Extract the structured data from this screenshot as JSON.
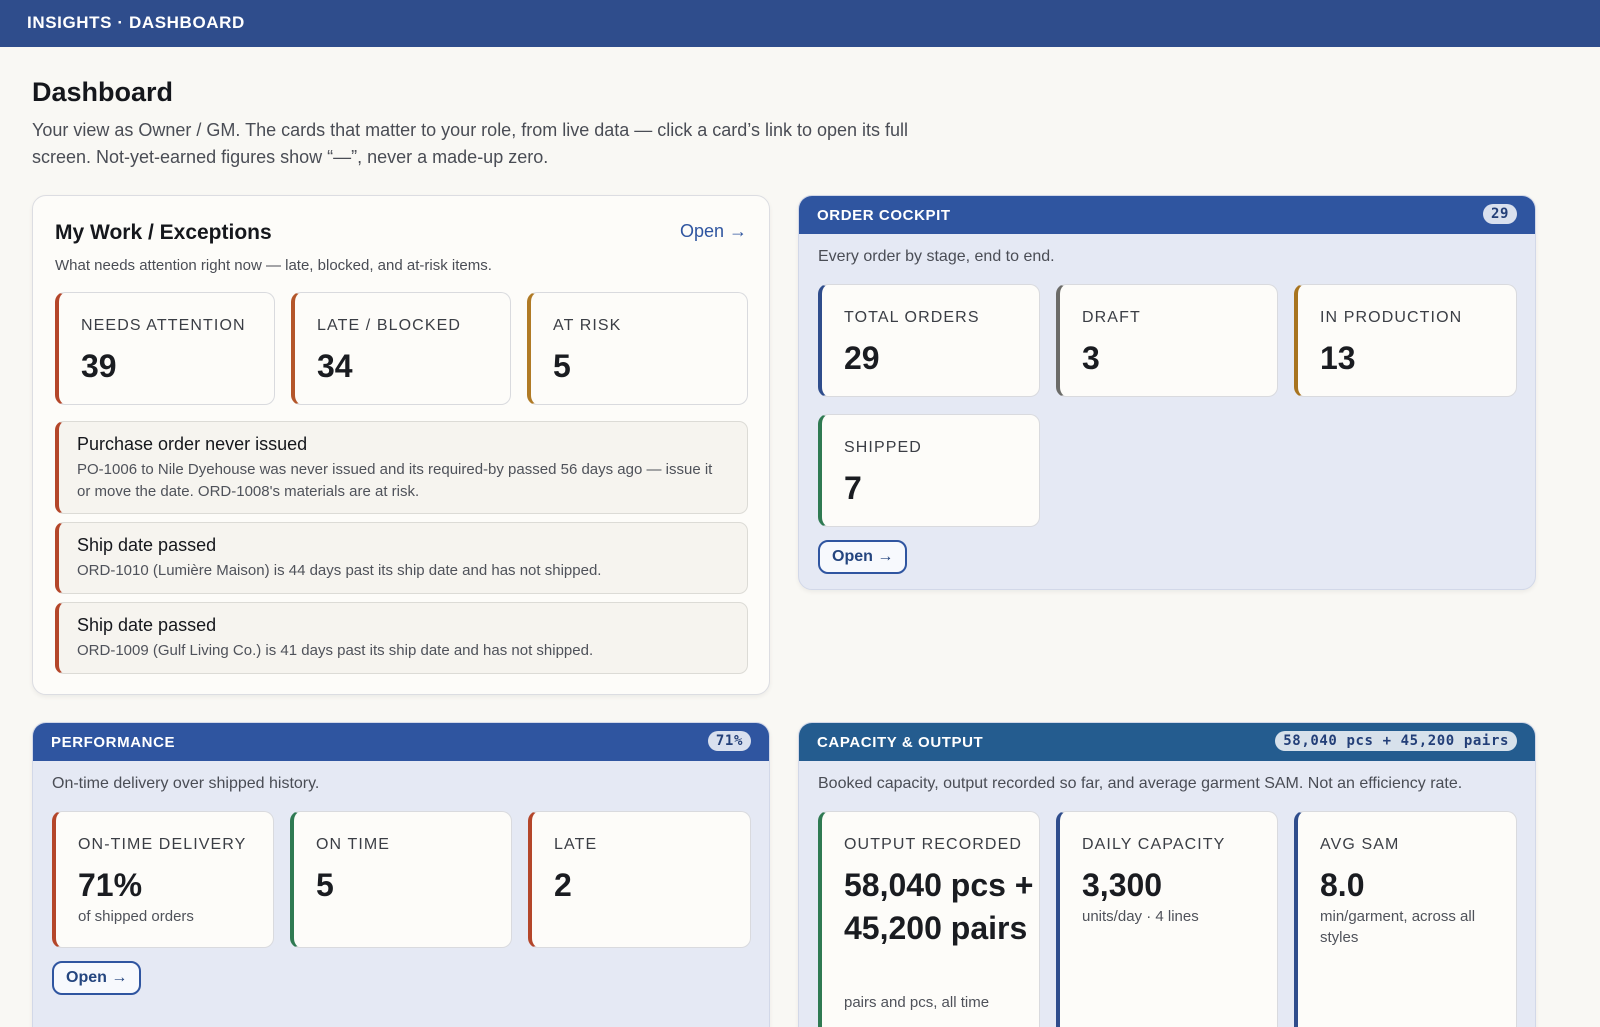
{
  "topbar": {
    "title": "INSIGHTS · DASHBOARD"
  },
  "page": {
    "title": "Dashboard",
    "subtitle": "Your view as Owner / GM. The cards that matter to your role, from live data — click a card’s link to open its full screen. Not-yet-earned figures show “—”, never a made-up zero."
  },
  "my_work": {
    "title": "My Work / Exceptions",
    "open_link": "Open →",
    "description": "What needs attention right now — late, blocked, and at-risk items.",
    "stats": [
      {
        "label": "NEEDS ATTENTION",
        "value": "39",
        "color": "#b4462a"
      },
      {
        "label": "LATE / BLOCKED",
        "value": "34",
        "color": "#b4562a"
      },
      {
        "label": "AT RISK",
        "value": "5",
        "color": "#b07a25"
      }
    ],
    "exceptions": [
      {
        "title": "Purchase order never issued",
        "detail": "PO-1006 to Nile Dyehouse was never issued and its required-by passed 56 days ago — issue it or move the date. ORD-1008's materials are at risk."
      },
      {
        "title": "Ship date passed",
        "detail": "ORD-1010 (Lumière Maison) is 44 days past its ship date and has not shipped."
      },
      {
        "title": "Ship date passed",
        "detail": "ORD-1009 (Gulf Living Co.) is 41 days past its ship date and has not shipped."
      }
    ]
  },
  "order_cockpit": {
    "title": "ORDER COCKPIT",
    "badge": "29",
    "description": "Every order by stage, end to end.",
    "stats": [
      {
        "label": "TOTAL ORDERS",
        "value": "29",
        "color": "#2f4d8c"
      },
      {
        "label": "DRAFT",
        "value": "3",
        "color": "#6b6b68"
      },
      {
        "label": "IN PRODUCTION",
        "value": "13",
        "color": "#a8741f"
      },
      {
        "label": "SHIPPED",
        "value": "7",
        "color": "#2f7a52"
      }
    ],
    "open_button": "Open →"
  },
  "performance": {
    "title": "PERFORMANCE",
    "badge": "71%",
    "description": "On-time delivery over shipped history.",
    "stats": [
      {
        "label": "ON-TIME DELIVERY",
        "value": "71%",
        "note": "of shipped orders",
        "color": "#b4462a"
      },
      {
        "label": "ON TIME",
        "value": "5",
        "color": "#2f7a52"
      },
      {
        "label": "LATE",
        "value": "2",
        "color": "#b4462a"
      }
    ],
    "open_button": "Open →"
  },
  "capacity": {
    "title": "CAPACITY & OUTPUT",
    "badge": "58,040 pcs + 45,200 pairs",
    "description": "Booked capacity, output recorded so far, and average garment SAM. Not an efficiency rate.",
    "stats": [
      {
        "label": "OUTPUT RECORDED",
        "value": "58,040 pcs + 45,200 pairs",
        "note": "pairs and pcs, all time",
        "color": "#2f7a52"
      },
      {
        "label": "DAILY CAPACITY",
        "value": "3,300",
        "note": "units/day · 4 lines",
        "color": "#2f4d8c"
      },
      {
        "label": "AVG SAM",
        "value": "8.0",
        "note": "min/garment, across all styles",
        "color": "#2f4d8c"
      }
    ]
  }
}
